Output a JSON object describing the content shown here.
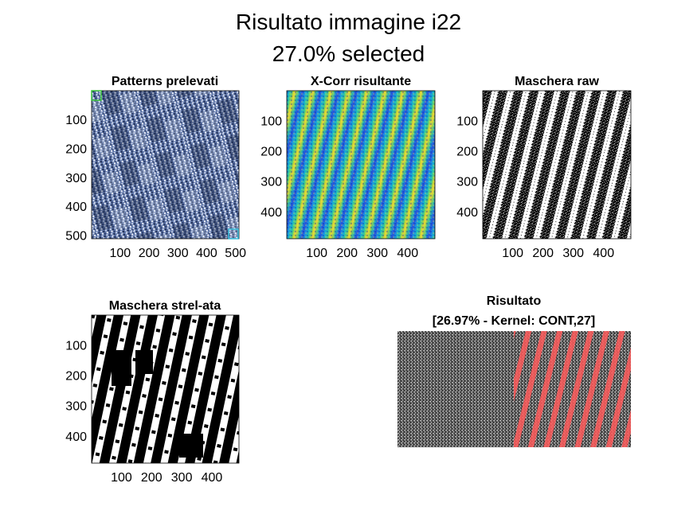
{
  "figure": {
    "title_line1": "Risultato immagine i22",
    "title_line2": "27.0% selected"
  },
  "chart_data": [
    {
      "type": "heatmap",
      "title": "Patterns prelevati",
      "colormap": "blue-tinted grayscale texture",
      "xticks": [
        "100",
        "200",
        "300",
        "400",
        "500"
      ],
      "yticks": [
        "100",
        "200",
        "300",
        "400",
        "500"
      ],
      "xlim": [
        1,
        512
      ],
      "ylim": [
        1,
        512
      ]
    },
    {
      "type": "heatmap",
      "title": "X-Corr risultante",
      "colormap": "parula",
      "xticks": [
        "100",
        "200",
        "300",
        "400"
      ],
      "yticks": [
        "100",
        "200",
        "300",
        "400"
      ],
      "xlim": [
        1,
        490
      ],
      "ylim": [
        1,
        490
      ]
    },
    {
      "type": "heatmap",
      "title": "Maschera raw",
      "colormap": "binary",
      "xticks": [
        "100",
        "200",
        "300",
        "400"
      ],
      "yticks": [
        "100",
        "200",
        "300",
        "400"
      ],
      "xlim": [
        1,
        490
      ],
      "ylim": [
        1,
        490
      ]
    },
    {
      "type": "heatmap",
      "title": "Maschera strel-ata",
      "colormap": "binary",
      "xticks": [
        "100",
        "200",
        "300",
        "400"
      ],
      "yticks": [
        "100",
        "200",
        "300",
        "400"
      ],
      "xlim": [
        1,
        490
      ],
      "ylim": [
        1,
        490
      ]
    },
    {
      "type": "heatmap",
      "title_line1": "Risultato",
      "title_line2": "[26.97% - Kernel: CONT,27]",
      "colormap": "grayscale with red overlay on selected region",
      "selected_percent": 26.97,
      "axes_visible": false
    }
  ]
}
